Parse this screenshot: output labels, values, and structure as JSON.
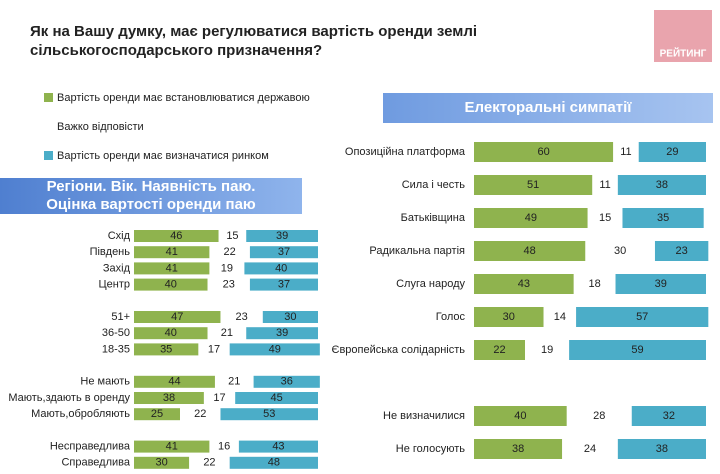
{
  "title": "Як на Вашу думку, має регулюватися вартість оренди землі сільськогосподарського призначення?",
  "logo": "РЕЙТИНГ",
  "chart_data": [
    {
      "type": "bar",
      "orientation": "horizontal",
      "stacked": true,
      "title": [
        "Регіони. Вік. Наявність паю.",
        "Оцінка вартості оренди паю"
      ],
      "xlim": [
        0,
        100
      ],
      "categories": [
        "Схід",
        "Південь",
        "Захід",
        "Центр",
        null,
        "51+",
        "36-50",
        "18-35",
        null,
        "Не мають",
        "Мають,здають в оренду",
        "Мають,обробляють",
        null,
        "Несправедлива",
        "Справедлива"
      ],
      "series": [
        {
          "name": "Вартість оренди має встановлюватися державою",
          "color": "#8fb34e",
          "values": [
            46,
            41,
            41,
            40,
            null,
            47,
            40,
            35,
            null,
            44,
            38,
            25,
            null,
            41,
            30
          ]
        },
        {
          "name": "Важко відповісти",
          "color": "#ffffff",
          "values": [
            15,
            22,
            19,
            23,
            null,
            23,
            21,
            17,
            null,
            21,
            17,
            22,
            null,
            16,
            22
          ]
        },
        {
          "name": "Вартість оренди має визначатися ринком",
          "color": "#4badc8",
          "values": [
            39,
            37,
            40,
            37,
            null,
            30,
            39,
            49,
            null,
            36,
            45,
            53,
            null,
            43,
            48
          ]
        }
      ]
    },
    {
      "type": "bar",
      "orientation": "horizontal",
      "stacked": true,
      "title": [
        "Електоральні симпатії"
      ],
      "xlim": [
        0,
        100
      ],
      "categories": [
        "Опозиційна платформа",
        "Сила і честь",
        "Батьківщина",
        "Радикальна партія",
        "Слуга народу",
        "Голос",
        "Європейська солідарність",
        null,
        "Не визначилися",
        "Не голосують"
      ],
      "series": [
        {
          "color": "#8fb34e",
          "values": [
            60,
            51,
            49,
            48,
            43,
            30,
            22,
            null,
            40,
            38
          ]
        },
        {
          "color": "#ffffff",
          "values": [
            11,
            11,
            15,
            30,
            18,
            14,
            19,
            null,
            28,
            24
          ]
        },
        {
          "color": "#4badc8",
          "values": [
            29,
            38,
            35,
            23,
            39,
            57,
            59,
            null,
            32,
            38
          ]
        }
      ]
    }
  ]
}
